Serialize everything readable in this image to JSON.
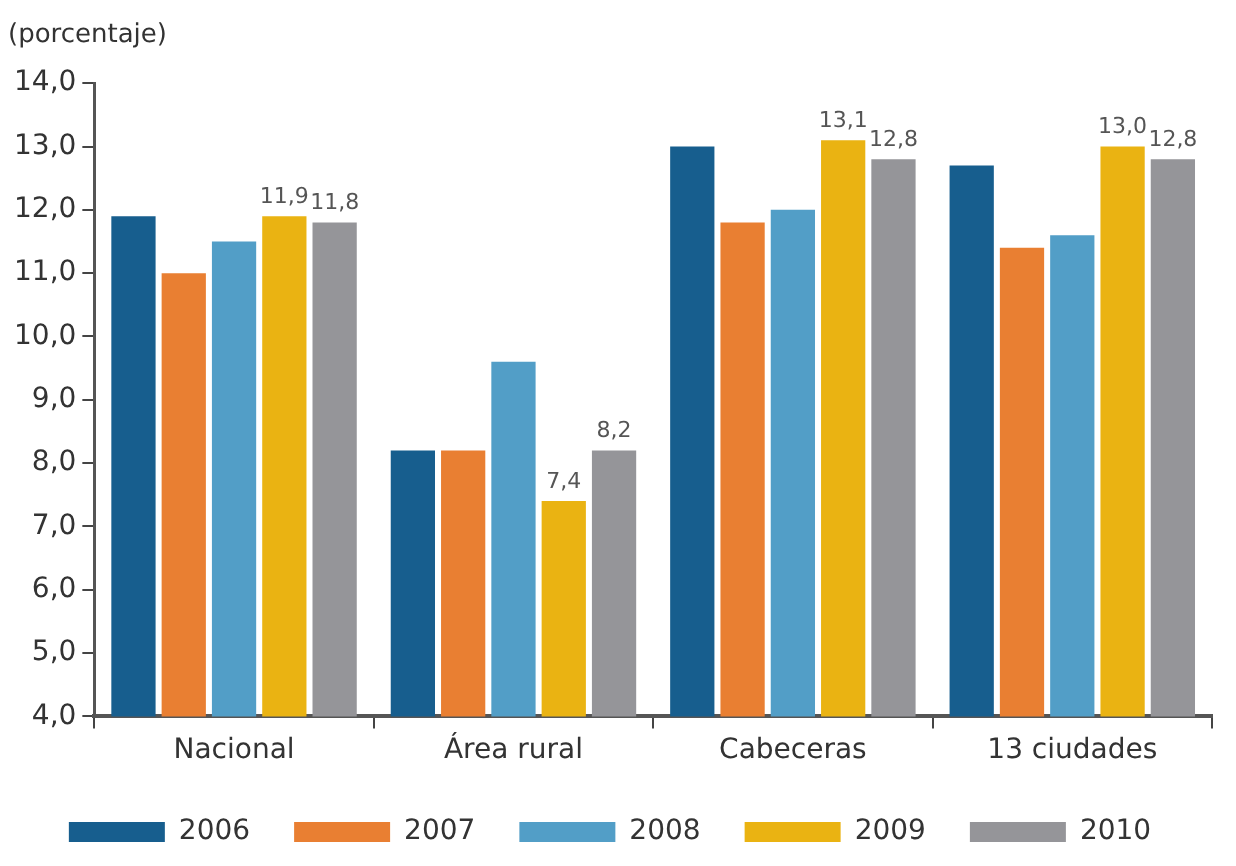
{
  "chart_data": {
    "type": "bar",
    "ylabel": "(porcentaje)",
    "categories": [
      "Nacional",
      "Área rural",
      "Cabeceras",
      "13 ciudades"
    ],
    "series": [
      {
        "name": "2006",
        "color": "#175e8e",
        "values": [
          11.9,
          8.2,
          13.0,
          12.7
        ]
      },
      {
        "name": "2007",
        "color": "#e97f32",
        "values": [
          11.0,
          8.2,
          11.8,
          11.4
        ]
      },
      {
        "name": "2008",
        "color": "#529ec7",
        "values": [
          11.5,
          9.6,
          12.0,
          11.6
        ]
      },
      {
        "name": "2009",
        "color": "#eab312",
        "values": [
          11.9,
          7.4,
          13.1,
          13.0
        ],
        "value_labels": [
          "11,9",
          "7,4",
          "13,1",
          "13,0"
        ]
      },
      {
        "name": "2010",
        "color": "#959599",
        "values": [
          11.8,
          8.2,
          12.8,
          12.8
        ],
        "value_labels": [
          "11,8",
          "8,2",
          "12,8",
          "12,8"
        ]
      }
    ],
    "ylim": [
      4,
      14
    ],
    "yticks": [
      {
        "value": 4,
        "label": "4,0"
      },
      {
        "value": 5,
        "label": "5,0"
      },
      {
        "value": 6,
        "label": "6,0"
      },
      {
        "value": 7,
        "label": "7,0"
      },
      {
        "value": 8,
        "label": "8,0"
      },
      {
        "value": 9,
        "label": "9,0"
      },
      {
        "value": 10,
        "label": "10,0"
      },
      {
        "value": 11,
        "label": "11,0"
      },
      {
        "value": 12,
        "label": "12,0"
      },
      {
        "value": 13,
        "label": "13,0"
      },
      {
        "value": 14,
        "label": "14,0"
      }
    ],
    "grid": false,
    "legend": "bottom"
  }
}
